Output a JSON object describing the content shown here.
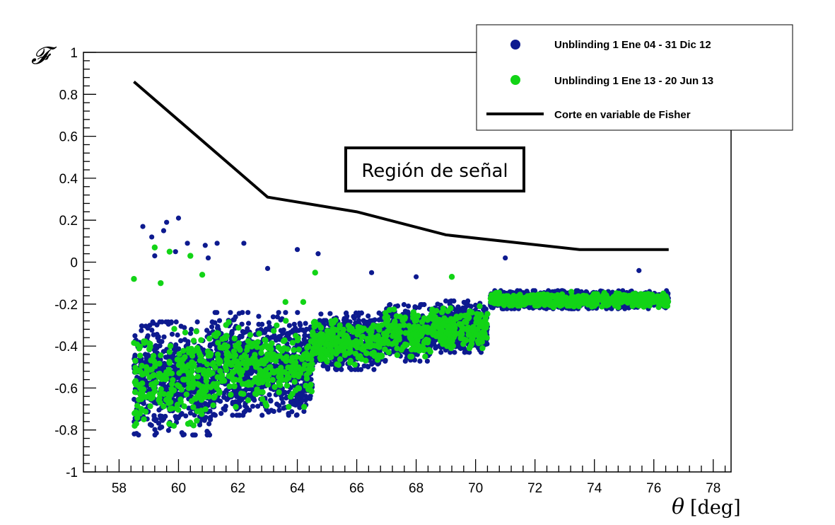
{
  "chart_data": {
    "type": "scatter",
    "title": "",
    "xlabel_symbol": "θ",
    "xlabel_unit": "[deg]",
    "ylabel": "𝓕",
    "xlim": [
      56.8,
      78.6
    ],
    "ylim": [
      -1,
      1
    ],
    "x_ticks": [
      "58",
      "60",
      "62",
      "64",
      "66",
      "68",
      "70",
      "72",
      "74",
      "76",
      "78"
    ],
    "y_ticks": [
      "-1",
      "-0.8",
      "-0.6",
      "-0.4",
      "-0.2",
      "0",
      "0.2",
      "0.4",
      "0.6",
      "0.8",
      "1"
    ],
    "grid": false,
    "legend_position": "top-right",
    "annotation": "Región de señal",
    "series": [
      {
        "name": "Unblinding 1 Ene 04 - 31 Dic 12",
        "color": "#0d1a8f",
        "marker": "circle",
        "bands": [
          {
            "x": [
              58.5,
              61.2
            ],
            "y_center": -0.56,
            "y_spread": 0.22
          },
          {
            "x": [
              61.2,
              64.5
            ],
            "y_center": -0.49,
            "y_spread": 0.2
          },
          {
            "x": [
              64.5,
              66.8
            ],
            "y_center": -0.38,
            "y_spread": 0.11
          },
          {
            "x": [
              66.8,
              68.5
            ],
            "y_center": -0.34,
            "y_spread": 0.11
          },
          {
            "x": [
              68.5,
              70.4
            ],
            "y_center": -0.31,
            "y_spread": 0.1
          },
          {
            "x": [
              70.5,
              76.5
            ],
            "y_center": -0.18,
            "y_spread": 0.035
          }
        ],
        "outliers": [
          [
            58.8,
            0.17
          ],
          [
            59.1,
            0.12
          ],
          [
            59.5,
            0.15
          ],
          [
            59.6,
            0.19
          ],
          [
            60.0,
            0.21
          ],
          [
            60.3,
            0.09
          ],
          [
            60.9,
            0.08
          ],
          [
            61.3,
            0.09
          ],
          [
            62.2,
            0.09
          ],
          [
            64.0,
            0.06
          ],
          [
            64.7,
            0.04
          ],
          [
            59.2,
            0.03
          ],
          [
            59.9,
            0.05
          ],
          [
            61.0,
            0.02
          ],
          [
            63.0,
            -0.03
          ],
          [
            71.0,
            0.02
          ],
          [
            75.5,
            -0.04
          ],
          [
            66.5,
            -0.05
          ],
          [
            68.0,
            -0.07
          ]
        ]
      },
      {
        "name": "Unblinding 1 Ene 13 - 20 Jun 13",
        "color": "#12d416",
        "marker": "circle",
        "points": [
          [
            59.2,
            0.07
          ],
          [
            59.7,
            0.05
          ],
          [
            60.4,
            0.03
          ],
          [
            58.5,
            -0.08
          ],
          [
            59.4,
            -0.1
          ],
          [
            60.8,
            -0.06
          ],
          [
            64.6,
            -0.05
          ],
          [
            69.2,
            -0.07
          ],
          [
            63.6,
            -0.19
          ],
          [
            64.2,
            -0.19
          ]
        ]
      }
    ],
    "cut_line": {
      "name": "Corte en variable de Fisher",
      "color": "#000000",
      "x": [
        58.5,
        63.0,
        66.0,
        69.0,
        73.5,
        76.5
      ],
      "y": [
        0.86,
        0.31,
        0.24,
        0.13,
        0.06,
        0.06
      ]
    }
  }
}
